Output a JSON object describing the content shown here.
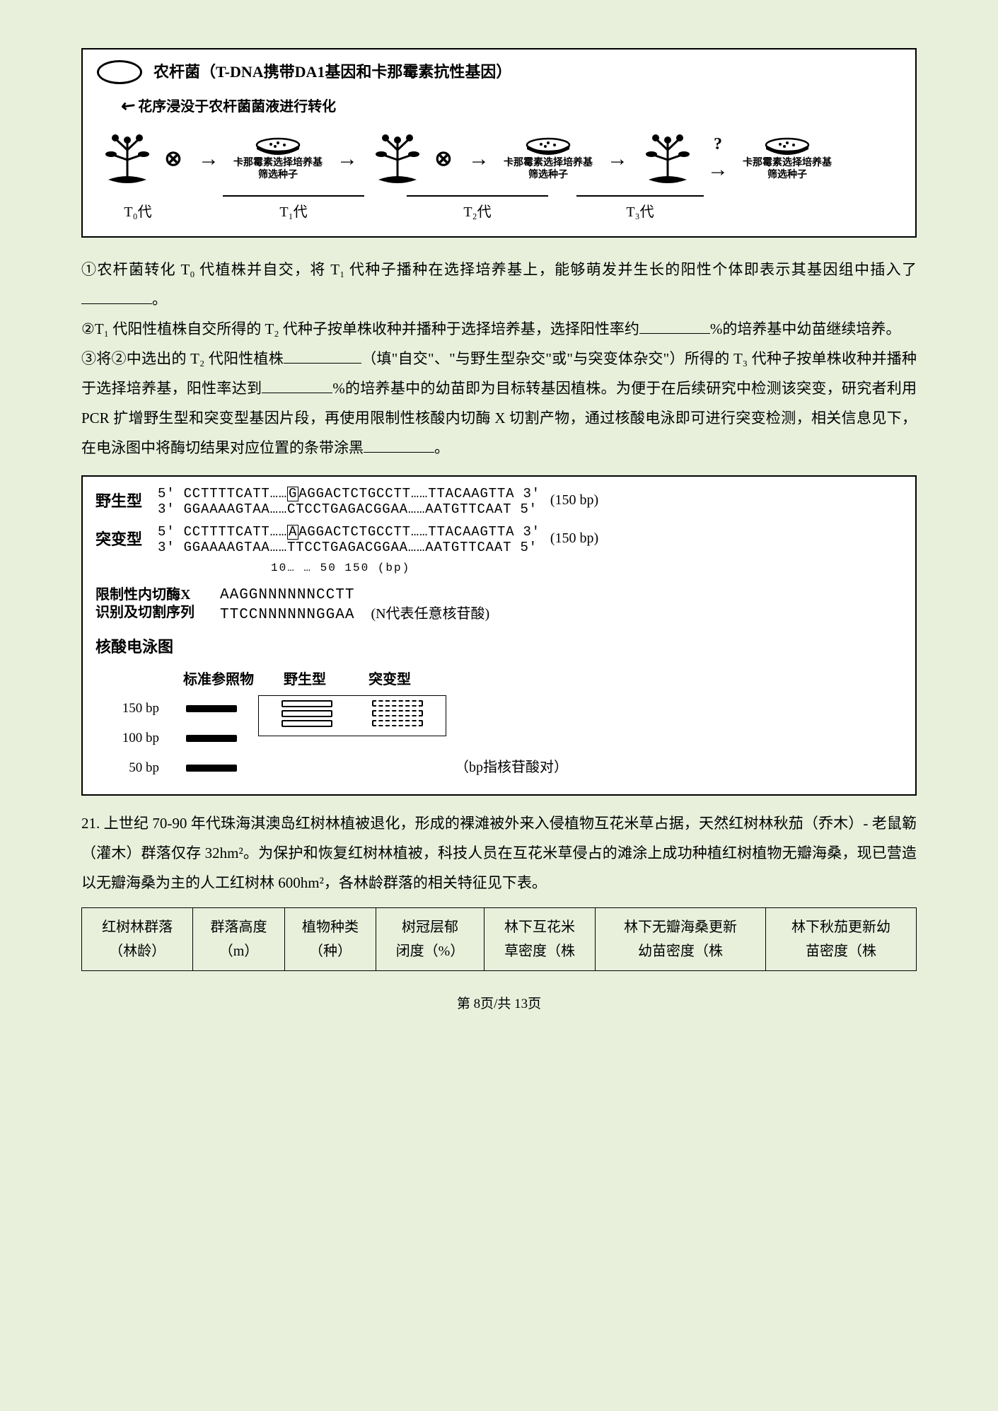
{
  "figure1": {
    "legend": "农杆菌（T-DNA携带DA1基因和卡那霉素抗性基因）",
    "arrow_note": "花序浸没于农杆菌菌液进行转化",
    "dish_caption_line1": "卡那霉素选择培养基",
    "dish_caption_line2": "筛选种子",
    "question_mark": "?",
    "gen0": "T₀代",
    "gen1": "T₁代",
    "gen2": "T₂代",
    "gen3": "T₃代",
    "otimes": "⊗",
    "arrow": "→"
  },
  "para1_a": "①农杆菌转化 T₀ 代植株并自交，将 T₁ 代种子播种在选择培养基上，能够萌发并生长的阳性个体即表示其基因组中插入了",
  "para1_b": "。",
  "para2_a": "②T₁ 代阳性植株自交所得的 T₂ 代种子按单株收种并播种于选择培养基，选择阳性率约",
  "para2_b": "%的培养基中幼苗继续培养。",
  "para3_a": "③将②中选出的 T₂ 代阳性植株",
  "para3_b": "（填\"自交\"、\"与野生型杂交\"或\"与突变体杂交\"）所得的 T₃ 代种子按单株收种并播种于选择培养基，阳性率达到",
  "para3_c": "%的培养基中的幼苗即为目标转基因植株。为便于在后续研究中检测该突变，研究者利用 PCR 扩增野生型和突变型基因片段，再使用限制性核酸内切酶 X 切割产物，通过核酸电泳即可进行突变检测，相关信息见下，在电泳图中将酶切结果对应位置的条带涂黑",
  "para3_d": "。",
  "seq": {
    "wt_label": "野生型",
    "wt_top": "5' CCTTTTCATT……<span class='boxed-char'>G</span>AGGACTCTGCCTT……TTACAAGTTA 3'",
    "wt_bot": "3' GGAAAAGTAA……CTCCTGAGACGGAA……AATGTTCAAT 5'",
    "wt_bp": "(150 bp)",
    "mut_label": "突变型",
    "mut_top": "5' CCTTTTCATT……<span class='boxed-char'>A</span>AGGACTCTGCCTT……TTACAAGTTA 3'",
    "mut_bot": "3' GGAAAAGTAA……TTCCTGAGACGGAA……AATGTTCAAT 5'",
    "mut_bp": "(150 bp)",
    "scale": "10…  …   50                       150 (bp)",
    "enz_label1": "限制性内切酶X",
    "enz_label2": "识别及切割序列",
    "enz_seq1": "AAGGNNNNNNCCTT",
    "enz_seq2": "TTCCNNNNNNGGAA",
    "enz_note": "(N代表任意核苷酸)",
    "gel_title": "核酸电泳图",
    "lane_ref": "标准参照物",
    "lane_wt": "野生型",
    "lane_mut": "突变型",
    "bp150": "150 bp",
    "bp100": "100 bp",
    "bp50": "50 bp",
    "gel_unit": "（bp指核苷酸对）"
  },
  "q21_a": "21. 上世纪 70-90 年代珠海淇澳岛红树林植被退化，形成的裸滩被外来入侵植物互花米草占据，天然红树林秋茄（乔木）- 老鼠簕（灌木）群落仅存 32hm²。为保护和恢复红树林植被，科技人员在互花米草侵占的滩涂上成功种植红树植物无瓣海桑，现已营造以无瓣海桑为主的人工红树林 600hm²，各林龄群落的相关特征见下表。",
  "table": {
    "h1a": "红树林群落",
    "h1b": "（林龄）",
    "h2a": "群落高度",
    "h2b": "（m）",
    "h3a": "植物种类",
    "h3b": "（种）",
    "h4a": "树冠层郁",
    "h4b": "闭度（%）",
    "h5a": "林下互花米",
    "h5b": "草密度（株",
    "h6a": "林下无瓣海桑更新",
    "h6b": "幼苗密度（株",
    "h7a": "林下秋茄更新幼",
    "h7b": "苗密度（株"
  },
  "footer": "第 8页/共 13页"
}
